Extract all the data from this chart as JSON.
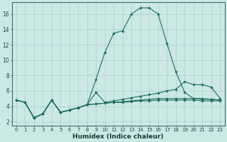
{
  "xlabel": "Humidex (Indice chaleur)",
  "ylabel": "",
  "background_color": "#cce8e4",
  "grid_color": "#aacccc",
  "line_color": "#1a6e60",
  "xlim": [
    -0.5,
    23.5
  ],
  "ylim": [
    1.5,
    17.5
  ],
  "x_ticks": [
    0,
    1,
    2,
    3,
    4,
    5,
    6,
    7,
    8,
    9,
    10,
    11,
    12,
    13,
    14,
    15,
    16,
    17,
    18,
    19,
    20,
    21,
    22,
    23
  ],
  "y_ticks": [
    2,
    4,
    6,
    8,
    10,
    12,
    14,
    16
  ],
  "series": [
    {
      "x": [
        0,
        1,
        2,
        3,
        4,
        5,
        6,
        7,
        8,
        9,
        10,
        11,
        12,
        13,
        14,
        15,
        16,
        17,
        18,
        19,
        20,
        21,
        22,
        23
      ],
      "y": [
        4.8,
        4.5,
        2.5,
        3.0,
        4.8,
        3.2,
        3.5,
        3.8,
        4.2,
        7.5,
        11.0,
        13.5,
        13.8,
        16.0,
        16.8,
        16.8,
        16.0,
        12.2,
        8.5,
        5.8,
        5.0,
        4.9,
        4.9,
        4.8
      ]
    },
    {
      "x": [
        0,
        1,
        2,
        3,
        4,
        5,
        6,
        7,
        8,
        9,
        10,
        11,
        12,
        13,
        14,
        15,
        16,
        17,
        18,
        19,
        20,
        21,
        22,
        23
      ],
      "y": [
        4.8,
        4.5,
        2.5,
        3.0,
        4.8,
        3.2,
        3.5,
        3.8,
        4.2,
        5.8,
        4.5,
        4.7,
        4.9,
        5.1,
        5.3,
        5.5,
        5.7,
        6.0,
        6.2,
        7.2,
        6.8,
        6.8,
        6.5,
        5.0
      ]
    },
    {
      "x": [
        0,
        1,
        2,
        3,
        4,
        5,
        6,
        7,
        8,
        9,
        10,
        11,
        12,
        13,
        14,
        15,
        16,
        17,
        18,
        19,
        20,
        21,
        22,
        23
      ],
      "y": [
        4.8,
        4.5,
        2.5,
        3.0,
        4.8,
        3.2,
        3.5,
        3.8,
        4.2,
        4.3,
        4.4,
        4.5,
        4.6,
        4.7,
        4.8,
        4.9,
        5.0,
        5.0,
        5.0,
        5.0,
        5.0,
        5.0,
        4.9,
        4.8
      ]
    },
    {
      "x": [
        0,
        1,
        2,
        3,
        4,
        5,
        6,
        7,
        8,
        9,
        10,
        11,
        12,
        13,
        14,
        15,
        16,
        17,
        18,
        19,
        20,
        21,
        22,
        23
      ],
      "y": [
        4.8,
        4.5,
        2.5,
        3.0,
        4.8,
        3.2,
        3.5,
        3.8,
        4.2,
        4.3,
        4.4,
        4.5,
        4.5,
        4.6,
        4.7,
        4.7,
        4.8,
        4.8,
        4.8,
        4.8,
        4.8,
        4.7,
        4.7,
        4.7
      ]
    }
  ]
}
